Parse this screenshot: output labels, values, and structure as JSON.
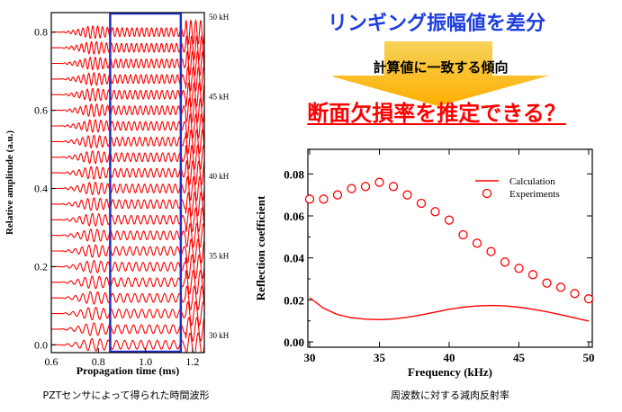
{
  "header": {
    "title": "リンギング振幅値を差分",
    "middle": "計算値に一致する傾向",
    "question": "断面欠損率を推定できる？"
  },
  "captions": {
    "left": "PZTセンサによって得られた時間波形",
    "right": "周波数に対する減肉反射率"
  },
  "colors": {
    "title_blue": "#1f3fe0",
    "wave_red": "#ff0000",
    "window_blue": "#1f2fc8",
    "arrow_top": "#f4c430",
    "arrow_bottom": "#ffb000"
  },
  "chart_data": [
    {
      "type": "line",
      "xlabel": "Propagation time (ms)",
      "ylabel": "Relative amplitude (a.u.)",
      "xlim": [
        0.6,
        1.25
      ],
      "ylim": [
        -0.02,
        0.85
      ],
      "xticks": [
        "0.6",
        "0.8",
        "1.0",
        "1.2"
      ],
      "yticks": [
        "0.0",
        "0.2",
        "0.4",
        "0.6",
        "0.8"
      ],
      "right_labels": [
        "50 kH",
        "45 kH",
        "40 kH",
        "35 kH",
        "30 kH"
      ],
      "frequencies_khz": [
        30,
        31,
        32,
        33,
        34,
        35,
        36,
        37,
        38,
        39,
        40,
        41,
        42,
        43,
        44,
        45,
        46,
        47,
        48,
        49,
        50
      ],
      "window_ms": [
        0.85,
        1.15
      ],
      "series_color": "#ff0000"
    },
    {
      "type": "scatter",
      "xlabel": "Frequency (kHz)",
      "ylabel": "Reflection coefficient",
      "xlim": [
        30,
        50
      ],
      "ylim": [
        0.0,
        0.09
      ],
      "xticks": [
        "30",
        "35",
        "40",
        "45",
        "50"
      ],
      "yticks": [
        "0.00",
        "0.02",
        "0.04",
        "0.06",
        "0.08"
      ],
      "legend_position": "top-right",
      "series": [
        {
          "name": "Calculation",
          "style": "line",
          "x": [
            30,
            31,
            32,
            33,
            34,
            35,
            36,
            37,
            38,
            39,
            40,
            41,
            42,
            43,
            44,
            45,
            46,
            47,
            48,
            49,
            50
          ],
          "values": [
            0.021,
            0.016,
            0.013,
            0.0115,
            0.0108,
            0.0106,
            0.0109,
            0.0117,
            0.0128,
            0.0142,
            0.0155,
            0.0165,
            0.0171,
            0.0173,
            0.0171,
            0.0165,
            0.0155,
            0.0143,
            0.0129,
            0.0114,
            0.0099
          ]
        },
        {
          "name": "Experiments",
          "style": "circle",
          "x": [
            30,
            31,
            32,
            33,
            34,
            35,
            36,
            37,
            38,
            39,
            40,
            41,
            42,
            43,
            44,
            45,
            46,
            47,
            48,
            49,
            50
          ],
          "values": [
            0.068,
            0.068,
            0.07,
            0.073,
            0.074,
            0.076,
            0.074,
            0.07,
            0.066,
            0.062,
            0.058,
            0.051,
            0.047,
            0.043,
            0.038,
            0.035,
            0.032,
            0.028,
            0.026,
            0.023,
            0.0205
          ]
        }
      ]
    }
  ]
}
